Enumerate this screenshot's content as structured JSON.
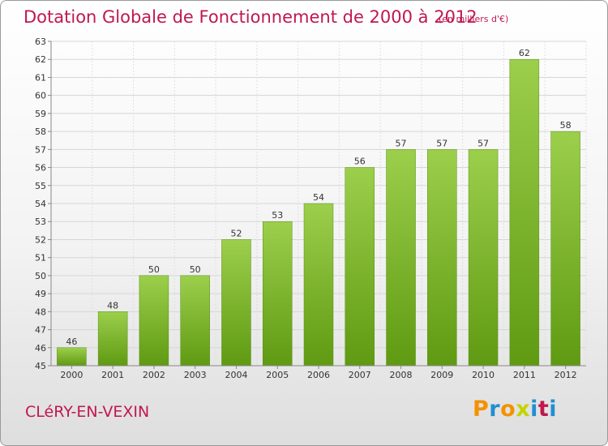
{
  "header": {
    "title": "Dotation Globale de Fonctionnement de 2000 à 2012",
    "unit": "(en milliers d'€)"
  },
  "footer": {
    "city": "CLéRY-EN-VEXIN",
    "logo_text": "Proxiti"
  },
  "colors": {
    "title": "#c0184e",
    "bar_light": "#9ccf4c",
    "bar_dark": "#5f9a12",
    "logo": [
      "#f39200",
      "#1f8fd1",
      "#f39200",
      "#c2d400",
      "#1f8fd1",
      "#c0184e",
      "#1f8fd1"
    ]
  },
  "chart_data": {
    "type": "bar",
    "categories": [
      "2000",
      "2001",
      "2002",
      "2003",
      "2004",
      "2005",
      "2006",
      "2007",
      "2008",
      "2009",
      "2010",
      "2011",
      "2012"
    ],
    "values": [
      46,
      48,
      50,
      50,
      52,
      53,
      54,
      56,
      57,
      57,
      57,
      62,
      58
    ],
    "title": "Dotation Globale de Fonctionnement de 2000 à 2012",
    "subtitle": "(en milliers d'€)",
    "xlabel": "",
    "ylabel": "",
    "ylim": [
      45,
      63
    ],
    "yticks": [
      45,
      46,
      47,
      48,
      49,
      50,
      51,
      52,
      53,
      54,
      55,
      56,
      57,
      58,
      59,
      60,
      61,
      62,
      63
    ],
    "grid": true,
    "legend": "none"
  }
}
